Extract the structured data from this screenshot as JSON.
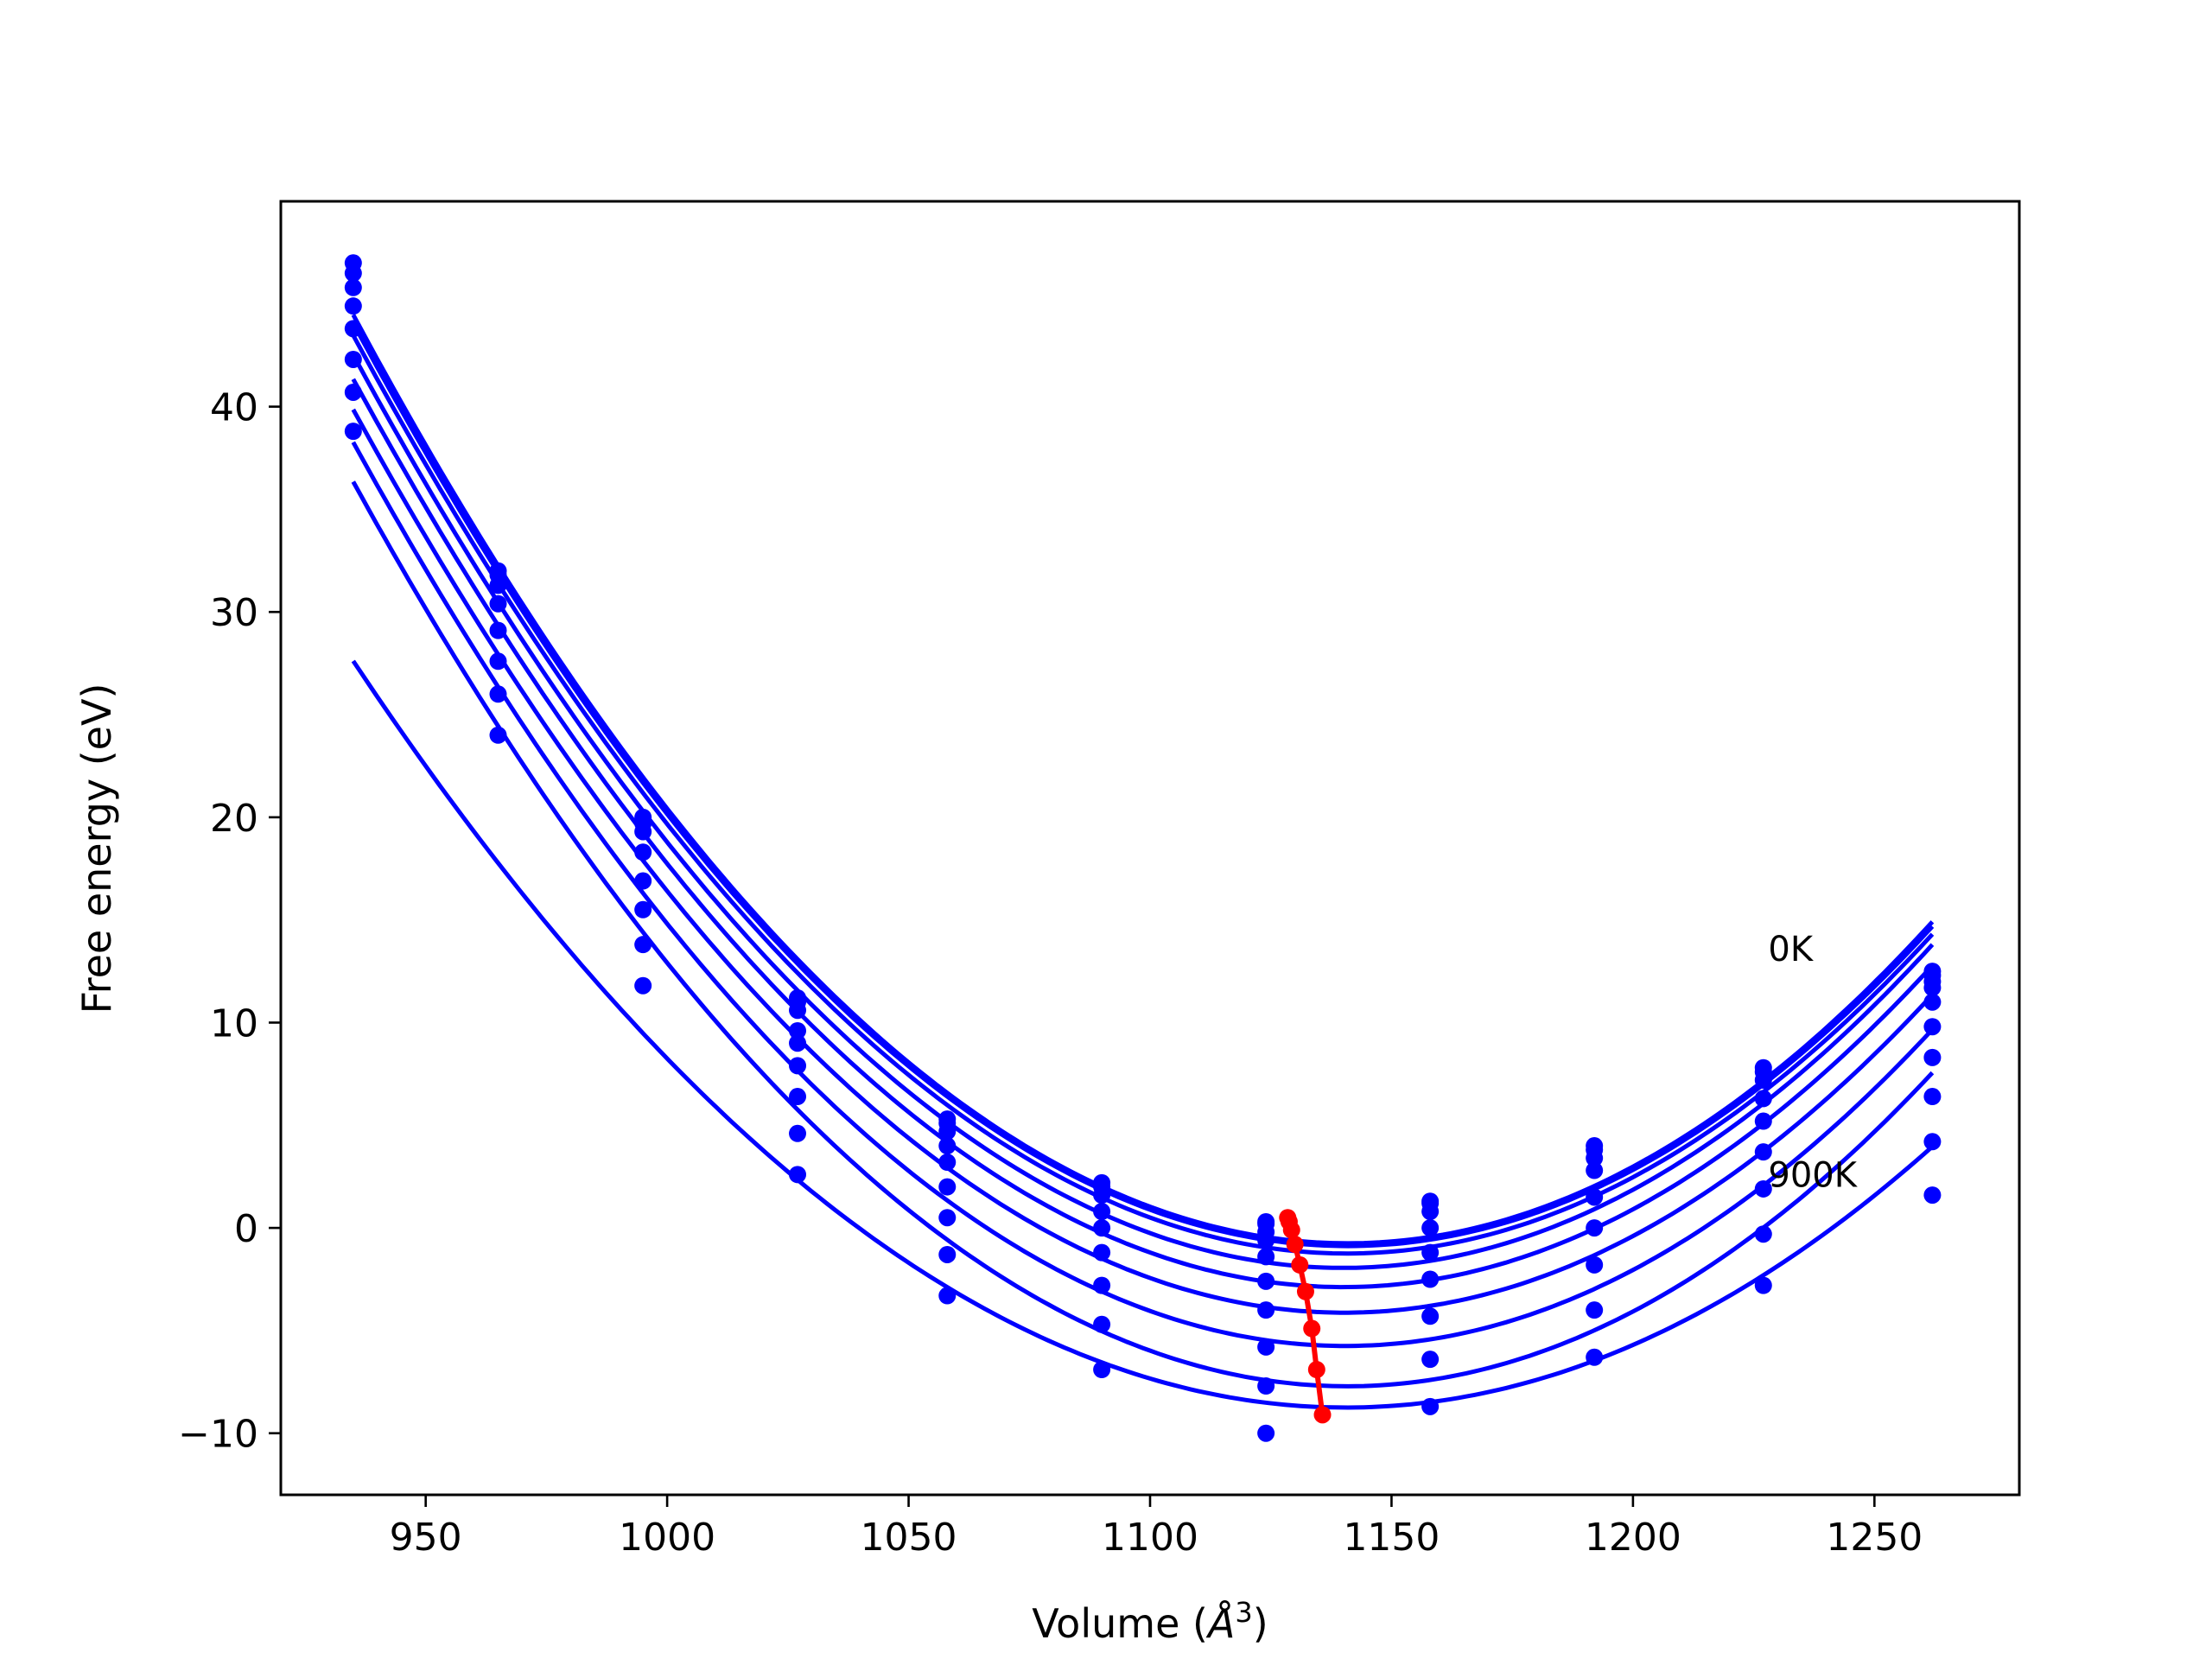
{
  "chart_data": {
    "type": "line",
    "xlabel": "Volume ($Å^3$)",
    "xlabel_main": "Volume (",
    "xlabel_unit": "Å",
    "xlabel_sup": "3",
    "xlabel_close": ")",
    "ylabel": "Free energy (eV)",
    "xlim": [
      920,
      1280
    ],
    "ylim": [
      -13,
      50
    ],
    "xticks": [
      950,
      1000,
      1050,
      1100,
      1150,
      1200,
      1250
    ],
    "yticks": [
      -10,
      0,
      10,
      20,
      30,
      40
    ],
    "ytick_labels": [
      "−10",
      "0",
      "10",
      "20",
      "30",
      "40"
    ],
    "grid": false,
    "annotations": [
      {
        "text": "0K",
        "x": 1228,
        "y": 13.0
      },
      {
        "text": "900K",
        "x": 1228,
        "y": 2.0
      }
    ],
    "volumes": [
      935,
      965,
      995,
      1027,
      1058,
      1090,
      1124,
      1158,
      1192,
      1227,
      1262
    ],
    "series": [
      {
        "color": "#0000ff",
        "style": "points+fit",
        "values": [
          47.0,
          32.0,
          20.0,
          11.2,
          5.3,
          2.2,
          0.3,
          1.3,
          4.0,
          7.8,
          12.5
        ]
      },
      {
        "color": "#0000ff",
        "style": "points+fit",
        "values": [
          46.5,
          31.8,
          19.7,
          11.0,
          5.1,
          2.0,
          0.2,
          1.2,
          3.8,
          7.6,
          12.3
        ]
      },
      {
        "color": "#0000ff",
        "style": "points+fit",
        "values": [
          45.8,
          31.3,
          19.3,
          10.6,
          4.7,
          1.6,
          -0.2,
          0.8,
          3.4,
          7.2,
          12.0
        ]
      },
      {
        "color": "#0000ff",
        "style": "points+fit",
        "values": [
          44.9,
          30.4,
          18.3,
          9.6,
          4.0,
          0.8,
          -0.6,
          0.0,
          2.8,
          6.3,
          11.7
        ]
      },
      {
        "color": "#0000ff",
        "style": "points+fit",
        "values": [
          43.8,
          29.1,
          16.9,
          9.0,
          3.2,
          0.0,
          -1.4,
          -1.2,
          1.5,
          5.2,
          11.0
        ]
      },
      {
        "color": "#0000ff",
        "style": "points+fit",
        "values": [
          42.3,
          27.6,
          15.5,
          7.9,
          2.0,
          -1.2,
          -2.6,
          -2.5,
          0.0,
          3.7,
          9.8
        ]
      },
      {
        "color": "#0000ff",
        "style": "points+fit",
        "values": [
          40.7,
          26.0,
          13.8,
          6.4,
          0.5,
          -2.8,
          -4.0,
          -4.3,
          -1.8,
          1.9,
          8.3
        ]
      },
      {
        "color": "#0000ff",
        "style": "points+fit",
        "values": [
          38.8,
          24.0,
          11.8,
          4.6,
          -1.3,
          -4.7,
          -5.8,
          -6.4,
          -4.0,
          -0.3,
          6.4
        ]
      },
      {
        "color": "#0000ff",
        "style": "points+fit",
        "values": [
          null,
          null,
          null,
          2.6,
          -3.3,
          -6.9,
          -7.7,
          -8.7,
          -6.3,
          -2.8,
          4.2
        ]
      },
      {
        "color": "#0000ff",
        "style": "points+fit",
        "values": [
          null,
          null,
          null,
          null,
          null,
          null,
          -10.0,
          null,
          null,
          null,
          1.6
        ]
      }
    ],
    "minima": {
      "color": "#ff0000",
      "x": [
        1128.5,
        1128.8,
        1129.3,
        1130.0,
        1131.0,
        1132.2,
        1133.5,
        1134.5,
        1135.7
      ],
      "y": [
        0.5,
        0.3,
        -0.1,
        -0.8,
        -1.8,
        -3.1,
        -4.9,
        -6.9,
        -9.1
      ]
    }
  }
}
